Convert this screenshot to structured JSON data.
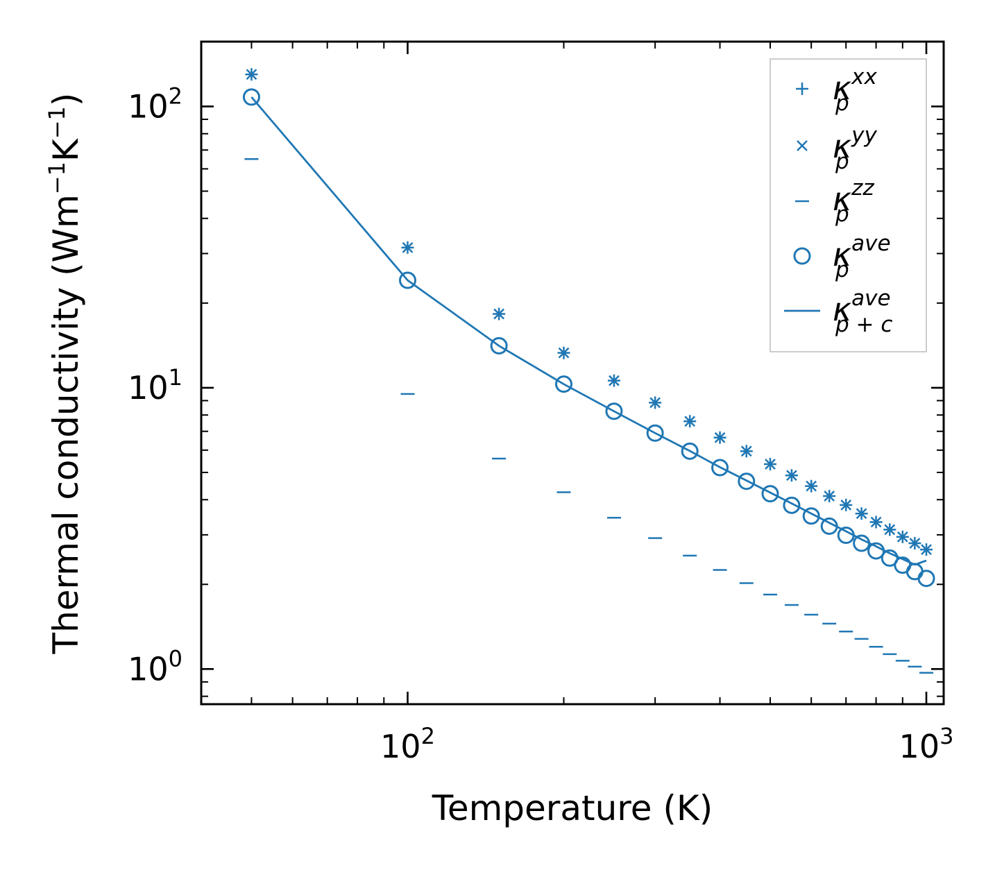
{
  "chart_data": {
    "type": "scatter",
    "title": "",
    "xlabel": "Temperature (K)",
    "ylabel": "Thermal conductivity (Wm",
    "ylabel_parts": {
      "prefix": "Thermal conductivity (Wm",
      "exp1": "−1",
      "mid": "K",
      "exp2": "−1",
      "suffix": ")"
    },
    "xscale": "log",
    "yscale": "log",
    "xlim": [
      40,
      1080
    ],
    "ylim": [
      0.75,
      170
    ],
    "xticks": [
      {
        "base": "10",
        "exp": "2"
      },
      {
        "base": "10",
        "exp": "3"
      }
    ],
    "yticks": [
      {
        "base": "10",
        "exp": "0"
      },
      {
        "base": "10",
        "exp": "1"
      },
      {
        "base": "10",
        "exp": "2"
      }
    ],
    "color": "#1f77b4",
    "x": [
      50,
      100,
      150,
      200,
      250,
      300,
      350,
      400,
      450,
      500,
      550,
      600,
      650,
      700,
      750,
      800,
      850,
      900,
      950,
      1000
    ],
    "series": [
      {
        "name": "κ_p^xx",
        "base": "κ",
        "sub": "p",
        "sup": "xx",
        "marker": "+",
        "values": [
          130,
          31.5,
          18.3,
          13.3,
          10.6,
          8.85,
          7.6,
          6.65,
          5.95,
          5.35,
          4.88,
          4.47,
          4.12,
          3.83,
          3.57,
          3.33,
          3.13,
          2.95,
          2.8,
          2.66
        ]
      },
      {
        "name": "κ_p^yy",
        "base": "κ",
        "sub": "p",
        "sup": "yy",
        "marker": "x",
        "values": [
          130,
          31.5,
          18.3,
          13.3,
          10.6,
          8.85,
          7.6,
          6.65,
          5.95,
          5.35,
          4.88,
          4.47,
          4.12,
          3.83,
          3.57,
          3.33,
          3.13,
          2.95,
          2.8,
          2.66
        ]
      },
      {
        "name": "κ_p^zz",
        "base": "κ",
        "sub": "p",
        "sup": "zz",
        "marker": "_",
        "values": [
          65,
          9.5,
          5.6,
          4.25,
          3.45,
          2.92,
          2.53,
          2.25,
          2.02,
          1.84,
          1.69,
          1.56,
          1.45,
          1.36,
          1.28,
          1.2,
          1.13,
          1.07,
          1.02,
          0.97
        ]
      },
      {
        "name": "κ_p^ave",
        "base": "κ",
        "sub": "p",
        "sup": "ave",
        "marker": "o",
        "values": [
          108,
          24.1,
          14.1,
          10.3,
          8.25,
          6.9,
          5.95,
          5.2,
          4.65,
          4.2,
          3.82,
          3.5,
          3.22,
          2.99,
          2.8,
          2.63,
          2.48,
          2.34,
          2.22,
          2.1
        ]
      },
      {
        "name": "κ_p+c^ave",
        "base": "κ",
        "sub": "p + c",
        "sup": "ave",
        "marker": "line",
        "values": [
          108,
          24.1,
          14.1,
          10.3,
          8.25,
          6.9,
          5.96,
          5.22,
          4.68,
          4.24,
          3.88,
          3.57,
          3.31,
          3.09,
          2.89,
          2.73,
          2.58,
          2.46,
          2.35,
          2.43
        ]
      }
    ],
    "legend_position": "top-right"
  }
}
